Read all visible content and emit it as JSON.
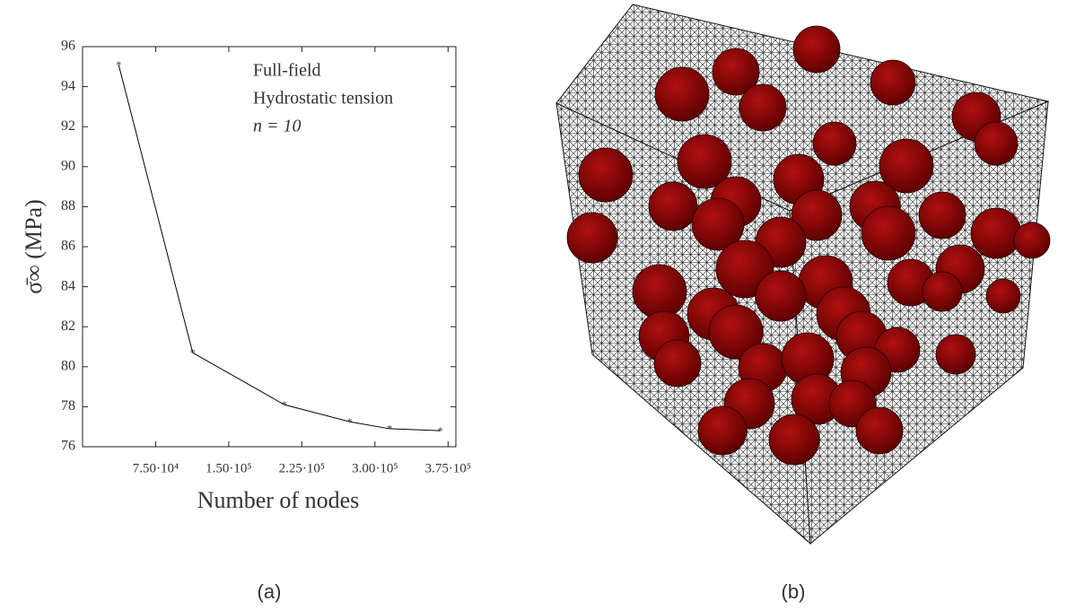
{
  "chart_data": {
    "type": "line",
    "xlabel": "Number of nodes",
    "ylabel": "σ̄∞ (MPa)",
    "annotations": [
      "Full-field",
      "Hydrostatic tension",
      "n = 10"
    ],
    "x": [
      37000,
      113000,
      207000,
      274000,
      315000,
      367000
    ],
    "values": [
      95.1,
      80.7,
      78.1,
      77.25,
      76.9,
      76.8
    ],
    "color": "#000000",
    "xlim": [
      0,
      383000
    ],
    "ylim": [
      76,
      96
    ],
    "xticks": [
      {
        "value": 75000,
        "label": "7.50·10⁴"
      },
      {
        "value": 150000,
        "label": "1.50·10⁵"
      },
      {
        "value": 225000,
        "label": "2.25·10⁵"
      },
      {
        "value": 300000,
        "label": "3.00·10⁵"
      },
      {
        "value": 375000,
        "label": "3.75·10⁵"
      }
    ],
    "yticks": [
      76,
      78,
      80,
      82,
      84,
      86,
      88,
      90,
      92,
      94,
      96
    ]
  },
  "captions": [
    "(a)",
    "(b)"
  ]
}
